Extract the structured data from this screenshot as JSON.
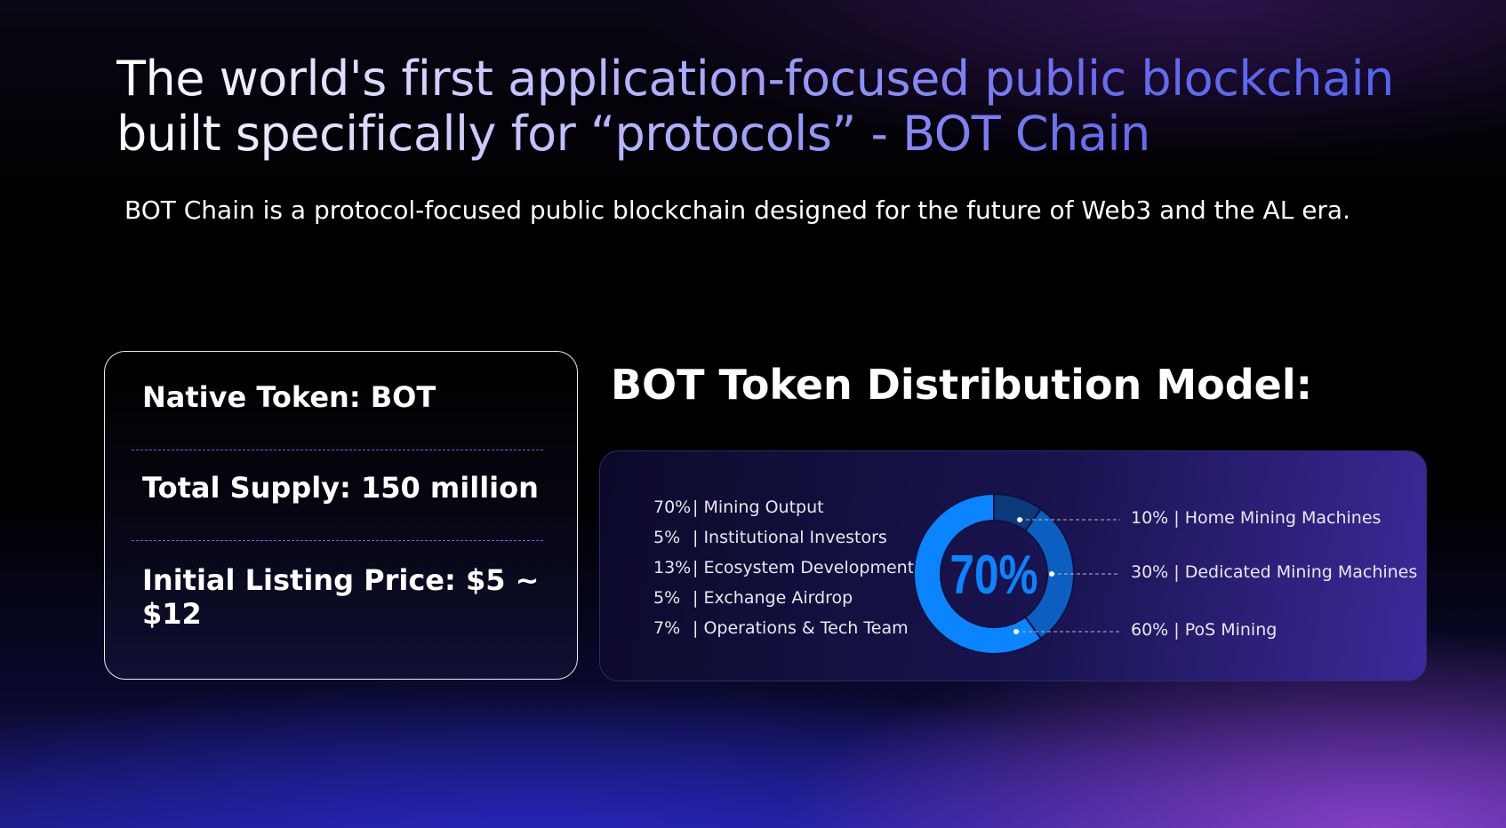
{
  "header": {
    "title": "The world's first application-focused public blockchain built specifically for “protocols” - BOT Chain",
    "subtitle": "BOT Chain is a protocol-focused public blockchain designed for the future of Web3 and the AL era."
  },
  "token_card": {
    "native_token": "Native Token: BOT",
    "total_supply": "Total Supply: 150 million",
    "listing_price": "Initial Listing Price: $5  ~ $12"
  },
  "distribution": {
    "heading": "BOT Token Distribution Model:",
    "allocations": [
      {
        "percent": "70%",
        "label": "| Mining Output"
      },
      {
        "percent": "5%",
        "label": "| Institutional Investors"
      },
      {
        "percent": "13%",
        "label": "| Ecosystem Development"
      },
      {
        "percent": "5%",
        "label": "| Exchange Airdrop"
      },
      {
        "percent": "7%",
        "label": "| Operations & Tech Team"
      }
    ]
  },
  "chart_data": {
    "type": "pie",
    "center_label": "70%",
    "categories": [
      "Home Mining Machines",
      "Dedicated Mining Machines",
      "PoS Mining"
    ],
    "values": [
      10,
      30,
      60
    ],
    "labels": [
      "10% | Home Mining Machines",
      "30% | Dedicated Mining Machines",
      "60% | PoS Mining"
    ],
    "colors": [
      "#0a3a7a",
      "#0a5fc0",
      "#0a84ff"
    ]
  }
}
